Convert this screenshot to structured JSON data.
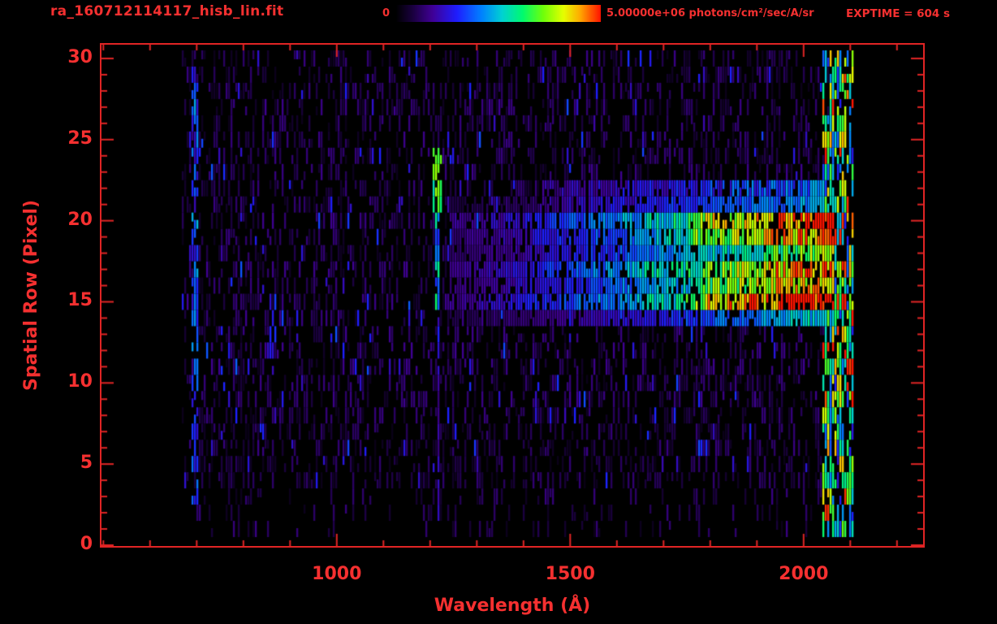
{
  "header": {
    "title": "ra_160712114117_hisb_lin.fit",
    "colorbar_min_label": "0",
    "colorbar_max_label": "5.00000e+06 photons/cm²/sec/A/sr",
    "exptime_label": "EXPTIME = 604 s"
  },
  "colors": {
    "text_red": "#f53030",
    "axis_red": "#e02424",
    "background": "#000000"
  },
  "chart_data": {
    "type": "heatmap",
    "title": "ra_160712114117_hisb_lin.fit",
    "xlabel": "Wavelength (Å)",
    "ylabel": "Spatial Row (Pixel)",
    "x_ticks": [
      {
        "value": 1000,
        "label": "1000"
      },
      {
        "value": 1500,
        "label": "1500"
      },
      {
        "value": 2000,
        "label": "2000"
      }
    ],
    "y_ticks": [
      {
        "value": 0,
        "label": "0"
      },
      {
        "value": 5,
        "label": "5"
      },
      {
        "value": 10,
        "label": "10"
      },
      {
        "value": 15,
        "label": "15"
      },
      {
        "value": 20,
        "label": "20"
      },
      {
        "value": 25,
        "label": "25"
      },
      {
        "value": 30,
        "label": "30"
      }
    ],
    "x_range": [
      496,
      2256
    ],
    "y_range": [
      -0.05,
      30.85
    ],
    "x_minor_step": 100,
    "y_minor_step": 1,
    "grid": false,
    "colorbar": {
      "min": 0,
      "max": 5000000,
      "min_label": "0",
      "max_label": "5.00000e+06 photons/cm²/sec/A/sr",
      "units": "photons/cm²/sec/A/sr",
      "colormap": "rainbow",
      "position": "top-center"
    },
    "exptime_s": 604,
    "data_extent": {
      "wavelength": [
        668,
        2108
      ],
      "rows": [
        1,
        30
      ]
    },
    "noise": {
      "seed": 20160712,
      "fill_fraction": 0.45,
      "sparse_row_max": 3,
      "sparse_fill_fraction": 0.16,
      "intensity_range": [
        0.03,
        0.16
      ],
      "blue_speck_fraction": 0.035,
      "blue_speck_intensity": [
        0.2,
        0.34
      ]
    },
    "features": [
      {
        "name": "left-edge-emission-line",
        "kind": "vline",
        "wavelength": [
          684,
          704
        ],
        "rows": [
          3,
          30
        ],
        "fill_fraction": 0.75,
        "intensity": [
          0.2,
          0.45
        ]
      },
      {
        "name": "minor-vertical-dash",
        "kind": "vline",
        "wavelength": [
          854,
          868
        ],
        "rows": [
          11,
          15
        ],
        "fill_fraction": 0.8,
        "intensity": [
          0.18,
          0.35
        ]
      },
      {
        "name": "lyman-alpha-emission",
        "kind": "emission_spot",
        "center_wavelength": 1214,
        "rows": [
          2,
          24
        ],
        "bright_rows": [
          21,
          24
        ],
        "mid_rows": [
          15,
          20
        ],
        "half_width_A": {
          "bright": 9,
          "mid": 5,
          "faint": 3
        },
        "intensity": {
          "bright": [
            0.55,
            0.8
          ],
          "mid": [
            0.3,
            0.55
          ],
          "faint": [
            0.1,
            0.28
          ]
        }
      },
      {
        "name": "source-continuum-band",
        "kind": "hband",
        "rows": [
          14,
          21
        ],
        "wavelength": [
          1240,
          2062
        ],
        "intensity_start": 0.15,
        "intensity_end": 0.9,
        "gamma": 1.35,
        "yellow_rows": [
          15,
          16,
          19,
          20
        ],
        "yellow_from_wavelength": 1760,
        "yellow_bonus": 0.12
      },
      {
        "name": "upper-faint-band",
        "kind": "hband2",
        "rows": [
          21,
          22
        ],
        "wavelength": [
          1430,
          2060
        ],
        "intensity": [
          0.18,
          0.45
        ]
      },
      {
        "name": "right-edge-noise-column",
        "kind": "vcolumn",
        "wavelength": [
          2040,
          2106
        ],
        "rows": [
          1,
          30
        ],
        "fill_fraction": 0.8,
        "intensity": [
          0.25,
          0.9
        ],
        "red_speck_fraction": 0.06
      }
    ]
  }
}
